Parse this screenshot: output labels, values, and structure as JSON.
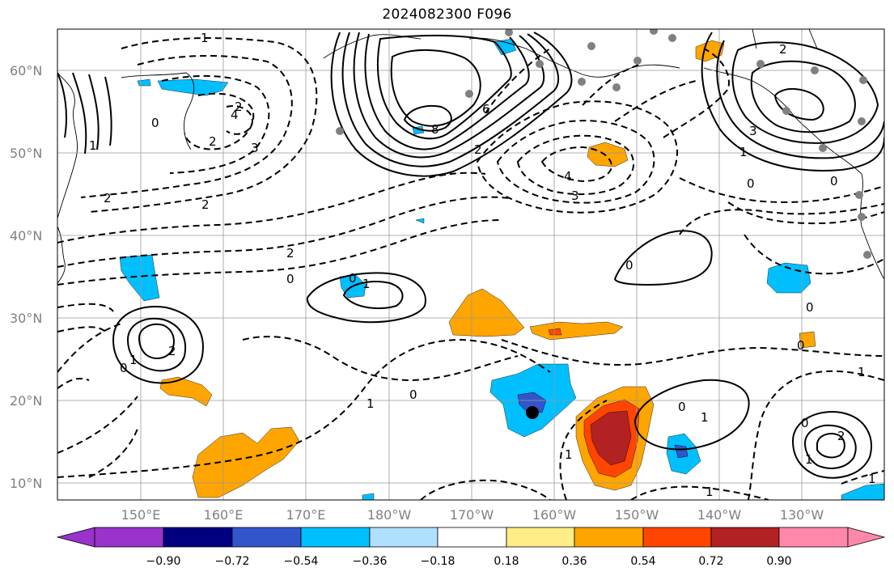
{
  "title": "2024082300 F096",
  "lat_labels": [
    "60°N",
    "50°N",
    "40°N",
    "30°N",
    "20°N",
    "10°N"
  ],
  "lon_labels": [
    "150°E",
    "160°E",
    "170°E",
    "180°W",
    "170°W",
    "160°W",
    "150°W",
    "140°W",
    "130°W"
  ],
  "colorbar": {
    "tick_labels": [
      "−0.90",
      "−0.72",
      "−0.54",
      "−0.36",
      "−0.18",
      "0.18",
      "0.36",
      "0.54",
      "0.72",
      "0.90"
    ],
    "colors": [
      "#9933cc",
      "#000080",
      "#3355cc",
      "#00bfff",
      "#b0e0ff",
      "#ffffff",
      "#ffee88",
      "#ffa500",
      "#ff4500",
      "#b22222",
      "#ff88aa"
    ]
  },
  "contour_labels": [
    "1",
    "2",
    "3",
    "0",
    "2",
    "1",
    "2",
    "2",
    "6",
    "8",
    "2",
    "2",
    "3",
    "1",
    "0",
    "0",
    "4",
    "3",
    "2",
    "0",
    "0",
    "1",
    "0",
    "1",
    "2",
    "0",
    "0",
    "0",
    "1",
    "1",
    "0",
    "1",
    "0",
    "1",
    "2",
    "1",
    "1",
    "1",
    "4",
    "0"
  ],
  "marker_color": "#808080"
}
